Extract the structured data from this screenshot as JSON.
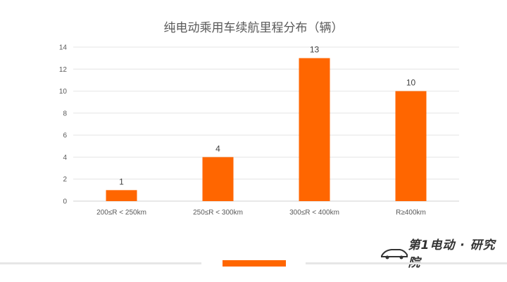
{
  "chart_data": {
    "type": "bar",
    "title": "纯电动乘用车续航里程分布（辆）",
    "categories": [
      "200≤R < 250km",
      "250≤R < 300km",
      "300≤R < 400km",
      "R≥400km"
    ],
    "values": [
      1,
      4,
      13,
      10
    ],
    "ylim": [
      0,
      14
    ],
    "yticks": [
      0,
      2,
      4,
      6,
      8,
      10,
      12,
      14
    ],
    "bar_color": "#ff6600",
    "grid": true,
    "data_labels": true
  },
  "branding": {
    "logo_text": "第1电动 · 研究院",
    "logo_icon": "car-outline-icon",
    "accent": "#ff6600"
  }
}
